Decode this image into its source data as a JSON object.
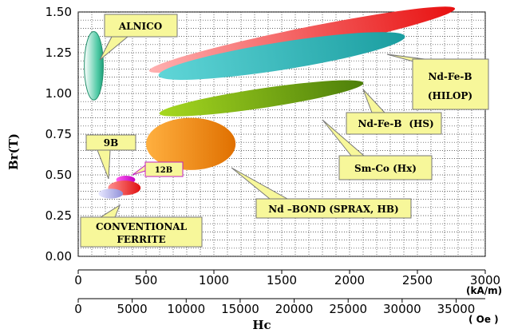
{
  "chart_data": {
    "type": "scatter",
    "ylabel": "Br(T)",
    "xlabel": "Hc",
    "x_unit_primary": "(kA/m)",
    "x_unit_secondary": "( Oe )",
    "xlim": [
      0,
      3000
    ],
    "ylim": [
      0.0,
      1.5
    ],
    "x_ticks": [
      "0",
      "500",
      "1000",
      "1500",
      "2000",
      "2500",
      "3000"
    ],
    "x_ticks_oe": [
      "0",
      "5000",
      "10000",
      "15000",
      "20000",
      "25000",
      "30000",
      "35000"
    ],
    "y_ticks": [
      "0.00",
      "0.25",
      "0.50",
      "0.75",
      "1.00",
      "1.25",
      "1.50"
    ],
    "grid": true,
    "regions": [
      {
        "name": "ALNICO",
        "cx": 115,
        "cy": 1.17,
        "rx": 70,
        "ry": 0.21,
        "angle": 0,
        "color": "#3cbf9a"
      },
      {
        "name": "Nd-Fe-B (HILOP)",
        "cx": 1650,
        "cy": 1.33,
        "rx": 1150,
        "ry": 0.07,
        "angle": -11.5,
        "color": "#ef2b2b"
      },
      {
        "name": "Nd-Fe-B (HS)",
        "cx": 1500,
        "cy": 1.23,
        "rx": 920,
        "ry": 0.085,
        "angle": -9,
        "color": "#2ab2b5"
      },
      {
        "name": "Sm-Co (Hx)",
        "cx": 1350,
        "cy": 0.97,
        "rx": 760,
        "ry": 0.06,
        "angle": -8.5,
        "color": "#6ea810"
      },
      {
        "name": "Nd-BOND (SPRAX, HB)",
        "cx": 830,
        "cy": 0.69,
        "rx": 330,
        "ry": 0.16,
        "angle": 0,
        "color": "#f08a10"
      },
      {
        "name": "12B",
        "cx": 350,
        "cy": 0.47,
        "rx": 70,
        "ry": 0.025,
        "angle": 0,
        "color": "#d81bd6"
      },
      {
        "name": "9B",
        "cx": 340,
        "cy": 0.42,
        "rx": 120,
        "ry": 0.045,
        "angle": 0,
        "color": "#f03030"
      },
      {
        "name": "CONVENTIONAL FERRITE",
        "cx": 240,
        "cy": 0.385,
        "rx": 90,
        "ry": 0.03,
        "angle": 0,
        "color": "#b0b0e8"
      }
    ],
    "callouts": {
      "alnico": "ALNICO",
      "ndfeb_hilop_1": "Nd-Fe-B",
      "ndfeb_hilop_2": "(HILOP)",
      "ndfeb_hs_1": "Nd-Fe-B",
      "ndfeb_hs_2": "(HS)",
      "smco": "Sm-Co (Hx)",
      "ndbond": "Nd –BOND (SPRAX, HB)",
      "b9": "9B",
      "b12": "12B",
      "ferrite_1": "CONVENTIONAL",
      "ferrite_2": "FERRITE"
    }
  }
}
